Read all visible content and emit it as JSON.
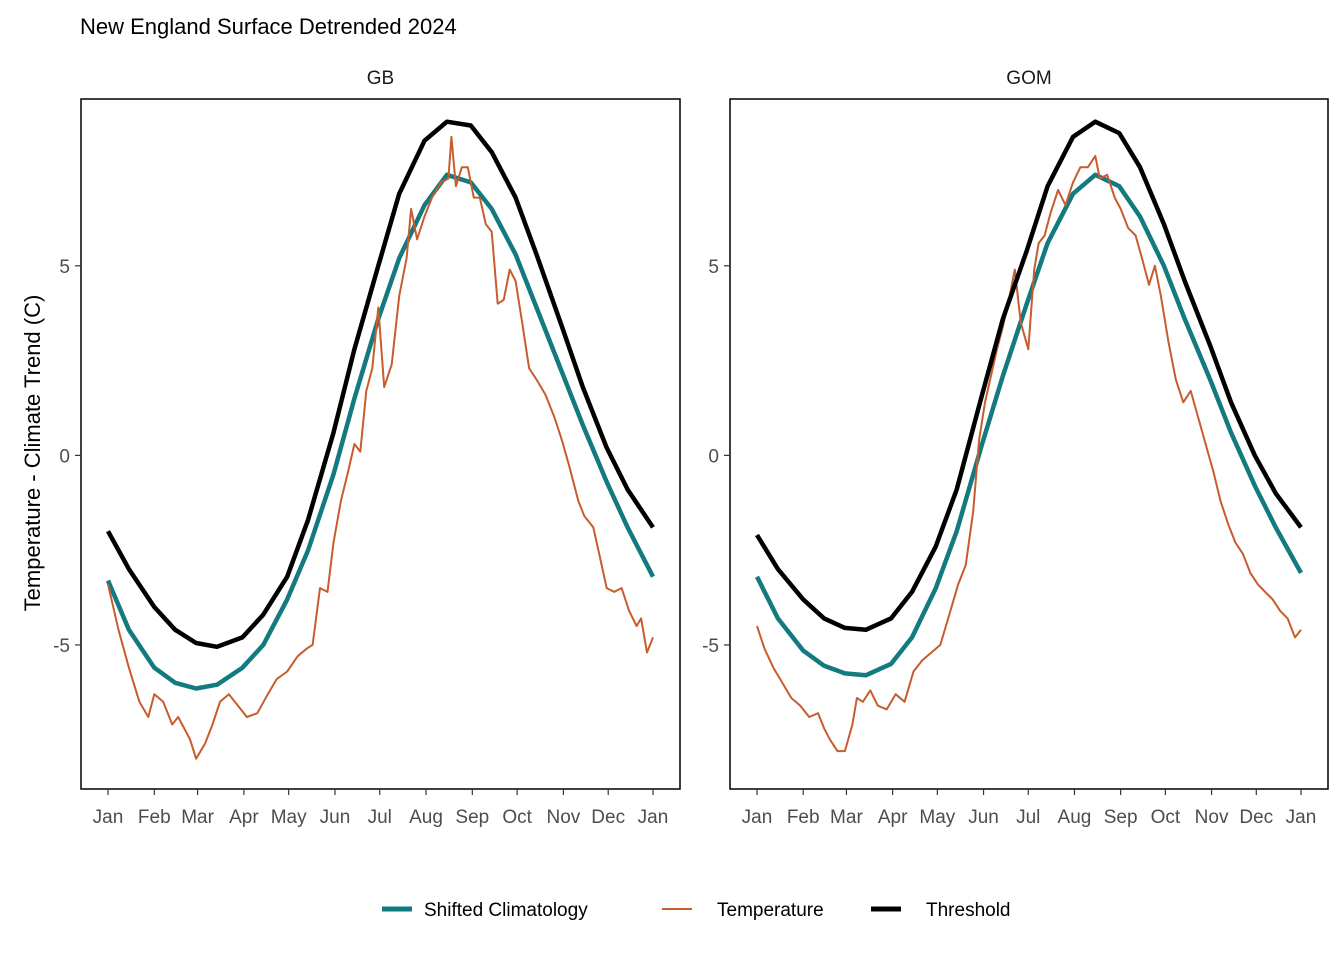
{
  "chart_data": {
    "title": "New England Surface Detrended 2024",
    "type": "line",
    "ylabel": "Temperature - Climate Trend (C)",
    "xlabel": "",
    "x_ticks": [
      "Jan",
      "Feb",
      "Mar",
      "Apr",
      "May",
      "Jun",
      "Jul",
      "Aug",
      "Sep",
      "Oct",
      "Nov",
      "Dec",
      "Jan"
    ],
    "y_ticks": [
      "-5",
      "0",
      "5"
    ],
    "xlim": [
      1,
      366
    ],
    "ylim": [
      -8.8,
      9.4
    ],
    "grid": false,
    "legend": {
      "position": "bottom",
      "entries": [
        "Shifted Climatology",
        "Temperature",
        "Threshold"
      ]
    },
    "colors": {
      "Shifted Climatology": "#137a7f",
      "Temperature": "#c75c2e",
      "Threshold": "#000000"
    },
    "panels": [
      {
        "label": "GB",
        "series": [
          {
            "name": "Shifted Climatology",
            "x": [
              1,
              15,
              32,
              46,
              60,
              74,
              91,
              105,
              121,
              135,
              152,
              166,
              182,
              196,
              213,
              228,
              244,
              258,
              274,
              288,
              305,
              319,
              335,
              349,
              366
            ],
            "y": [
              -3.3,
              -4.6,
              -5.6,
              -6.0,
              -6.15,
              -6.05,
              -5.6,
              -5.0,
              -3.8,
              -2.5,
              -0.5,
              1.5,
              3.6,
              5.2,
              6.6,
              7.4,
              7.2,
              6.5,
              5.3,
              3.9,
              2.2,
              0.8,
              -0.7,
              -1.9,
              -3.2
            ]
          },
          {
            "name": "Temperature",
            "x": [
              1,
              8,
              15,
              22,
              28,
              32,
              38,
              44,
              48,
              52,
              56,
              60,
              66,
              71,
              76,
              82,
              88,
              94,
              101,
              108,
              114,
              121,
              128,
              134,
              138,
              143,
              148,
              152,
              157,
              162,
              166,
              170,
              174,
              178,
              182,
              186,
              191,
              196,
              201,
              204,
              208,
              213,
              218,
              224,
              229,
              231,
              234,
              238,
              242,
              246,
              250,
              254,
              258,
              262,
              266,
              270,
              274,
              278,
              283,
              288,
              294,
              300,
              305,
              310,
              316,
              320,
              326,
              330,
              335,
              340,
              345,
              350,
              355,
              358,
              362,
              366
            ],
            "y": [
              -3.4,
              -4.6,
              -5.6,
              -6.5,
              -6.9,
              -6.3,
              -6.5,
              -7.1,
              -6.9,
              -7.2,
              -7.5,
              -8.0,
              -7.6,
              -7.1,
              -6.5,
              -6.3,
              -6.6,
              -6.9,
              -6.8,
              -6.3,
              -5.9,
              -5.7,
              -5.3,
              -5.1,
              -5.0,
              -3.5,
              -3.6,
              -2.3,
              -1.2,
              -0.4,
              0.3,
              0.1,
              1.7,
              2.3,
              3.9,
              1.8,
              2.4,
              4.2,
              5.2,
              6.5,
              5.7,
              6.3,
              6.8,
              7.2,
              7.3,
              8.4,
              7.1,
              7.6,
              7.6,
              6.8,
              6.8,
              6.1,
              5.9,
              4.0,
              4.1,
              4.9,
              4.6,
              3.6,
              2.3,
              2.0,
              1.6,
              1.0,
              0.4,
              -0.3,
              -1.2,
              -1.6,
              -1.9,
              -2.6,
              -3.5,
              -3.6,
              -3.5,
              -4.1,
              -4.5,
              -4.3,
              -5.2,
              -4.8
            ]
          },
          {
            "name": "Threshold",
            "x": [
              1,
              15,
              32,
              46,
              60,
              74,
              91,
              105,
              121,
              135,
              152,
              166,
              182,
              196,
              213,
              228,
              244,
              258,
              274,
              288,
              305,
              319,
              335,
              349,
              366
            ],
            "y": [
              -2.0,
              -3.0,
              -4.0,
              -4.6,
              -4.95,
              -5.05,
              -4.8,
              -4.2,
              -3.2,
              -1.7,
              0.6,
              2.8,
              5.0,
              6.9,
              8.3,
              8.8,
              8.7,
              8.0,
              6.8,
              5.3,
              3.4,
              1.8,
              0.2,
              -0.9,
              -1.9
            ]
          }
        ]
      },
      {
        "label": "GOM",
        "series": [
          {
            "name": "Shifted Climatology",
            "x": [
              1,
              15,
              32,
              46,
              60,
              74,
              91,
              105,
              121,
              135,
              152,
              166,
              182,
              196,
              213,
              228,
              244,
              258,
              274,
              288,
              305,
              319,
              335,
              349,
              366
            ],
            "y": [
              -3.2,
              -4.3,
              -5.15,
              -5.55,
              -5.75,
              -5.8,
              -5.5,
              -4.8,
              -3.5,
              -2.0,
              0.3,
              2.1,
              4.0,
              5.6,
              6.9,
              7.4,
              7.1,
              6.3,
              5.0,
              3.6,
              2.0,
              0.6,
              -0.8,
              -1.9,
              -3.1
            ]
          },
          {
            "name": "Temperature",
            "x": [
              1,
              6,
              12,
              18,
              24,
              30,
              36,
              42,
              46,
              50,
              55,
              60,
              65,
              68,
              72,
              77,
              82,
              88,
              94,
              100,
              106,
              112,
              118,
              124,
              130,
              136,
              141,
              146,
              150,
              154,
              158,
              162,
              166,
              170,
              174,
              178,
              183,
              187,
              190,
              194,
              198,
              203,
              208,
              213,
              218,
              223,
              228,
              231,
              236,
              241,
              245,
              250,
              255,
              260,
              264,
              268,
              272,
              277,
              282,
              287,
              292,
              297,
              302,
              307,
              312,
              317,
              322,
              327,
              332,
              337,
              342,
              347,
              352,
              357,
              362,
              366
            ],
            "y": [
              -4.5,
              -5.1,
              -5.6,
              -6.0,
              -6.4,
              -6.6,
              -6.9,
              -6.8,
              -7.2,
              -7.5,
              -7.8,
              -7.8,
              -7.1,
              -6.4,
              -6.5,
              -6.2,
              -6.6,
              -6.7,
              -6.3,
              -6.5,
              -5.7,
              -5.4,
              -5.2,
              -5.0,
              -4.2,
              -3.4,
              -2.9,
              -1.5,
              0.4,
              1.4,
              2.1,
              2.8,
              3.4,
              4.1,
              4.9,
              3.5,
              2.8,
              4.9,
              5.6,
              5.8,
              6.4,
              7.0,
              6.6,
              7.2,
              7.6,
              7.6,
              7.9,
              7.3,
              7.4,
              6.8,
              6.5,
              6.0,
              5.8,
              5.1,
              4.5,
              5.0,
              4.2,
              3.0,
              2.0,
              1.4,
              1.7,
              1.0,
              0.3,
              -0.4,
              -1.2,
              -1.8,
              -2.3,
              -2.6,
              -3.1,
              -3.4,
              -3.6,
              -3.8,
              -4.1,
              -4.3,
              -4.8,
              -4.6
            ]
          },
          {
            "name": "Threshold",
            "x": [
              1,
              15,
              32,
              46,
              60,
              74,
              91,
              105,
              121,
              135,
              152,
              166,
              182,
              196,
              213,
              228,
              244,
              258,
              274,
              288,
              305,
              319,
              335,
              349,
              366
            ],
            "y": [
              -2.1,
              -3.0,
              -3.8,
              -4.3,
              -4.55,
              -4.6,
              -4.3,
              -3.6,
              -2.4,
              -0.9,
              1.6,
              3.6,
              5.4,
              7.1,
              8.4,
              8.8,
              8.5,
              7.6,
              6.1,
              4.6,
              2.9,
              1.4,
              0.0,
              -1.0,
              -1.9
            ]
          }
        ]
      }
    ]
  }
}
